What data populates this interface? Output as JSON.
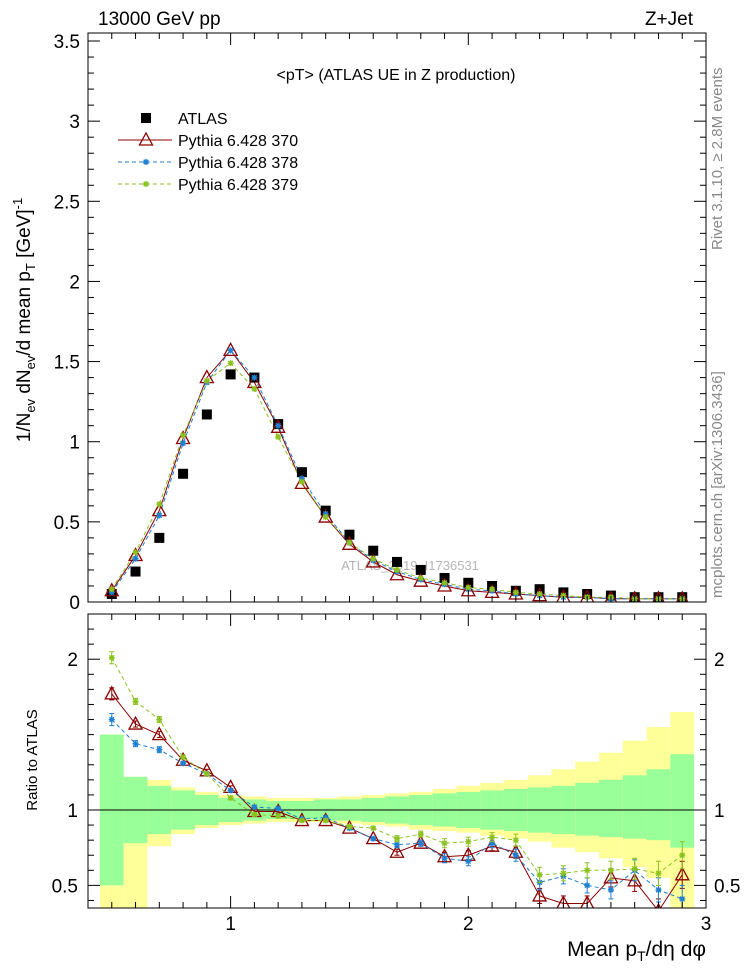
{
  "header": {
    "left": "13000 GeV pp",
    "right": "Z+Jet"
  },
  "side_labels": {
    "rivet": "Rivet 3.1.10, ≥ 2.8M events",
    "mcplots": "mcplots.cern.ch [arXiv:1306.3436]"
  },
  "watermark": "ATLAS_2019_I1736531",
  "colors": {
    "atlas": "#000000",
    "p370": "#8b0000",
    "p378": "#1f7fd0",
    "p379": "#8cc21f",
    "band_inner": "#99ff99",
    "band_outer": "#ffff99"
  },
  "chart_data": [
    {
      "type": "scatter",
      "title": "<pT> (ATLAS UE in Z production)",
      "xlabel": "Mean p_T/dη dφ",
      "ylabel": "1/N_ev dN_ev/d mean p_T [GeV]^-1",
      "xlim": [
        0.4,
        3.0
      ],
      "ylim": [
        0,
        3.55
      ],
      "yticks": [
        "0",
        "0.5",
        "1",
        "1.5",
        "2",
        "2.5",
        "3",
        "3.5"
      ],
      "legend_position": "top-left",
      "x": [
        0.5,
        0.6,
        0.7,
        0.8,
        0.9,
        1.0,
        1.1,
        1.2,
        1.3,
        1.4,
        1.5,
        1.6,
        1.7,
        1.8,
        1.9,
        2.0,
        2.1,
        2.2,
        2.3,
        2.4,
        2.5,
        2.6,
        2.7,
        2.8,
        2.9
      ],
      "series": [
        {
          "name": "ATLAS",
          "marker": "square",
          "values": [
            0.05,
            0.19,
            0.4,
            0.8,
            1.17,
            1.42,
            1.4,
            1.11,
            0.81,
            0.57,
            0.42,
            0.32,
            0.25,
            0.2,
            0.15,
            0.12,
            0.1,
            0.07,
            0.08,
            0.06,
            0.05,
            0.04,
            0.03,
            0.03,
            0.03
          ]
        },
        {
          "name": "Pythia 6.428 370",
          "marker": "triangle",
          "values": [
            0.07,
            0.29,
            0.57,
            1.02,
            1.4,
            1.57,
            1.37,
            1.09,
            0.74,
            0.53,
            0.36,
            0.25,
            0.17,
            0.13,
            0.1,
            0.07,
            0.06,
            0.05,
            0.04,
            0.03,
            0.03,
            0.02,
            0.02,
            0.02,
            0.02
          ]
        },
        {
          "name": "Pythia 6.428 378",
          "marker": "star",
          "values": [
            0.06,
            0.27,
            0.54,
            0.99,
            1.37,
            1.57,
            1.4,
            1.1,
            0.77,
            0.55,
            0.37,
            0.26,
            0.19,
            0.14,
            0.11,
            0.08,
            0.07,
            0.05,
            0.04,
            0.03,
            0.03,
            0.02,
            0.02,
            0.02,
            0.02
          ]
        },
        {
          "name": "Pythia 6.428 379",
          "marker": "star",
          "values": [
            0.08,
            0.31,
            0.61,
            1.04,
            1.38,
            1.49,
            1.33,
            1.03,
            0.75,
            0.53,
            0.37,
            0.27,
            0.2,
            0.15,
            0.12,
            0.09,
            0.08,
            0.06,
            0.05,
            0.04,
            0.03,
            0.03,
            0.02,
            0.02,
            0.02
          ]
        }
      ]
    },
    {
      "type": "line",
      "ylabel": "Ratio to ATLAS",
      "xlabel": "Mean p_T/dη dφ",
      "xlim": [
        0.4,
        3.0
      ],
      "ylim": [
        0.35,
        2.3
      ],
      "xticks": [
        "1",
        "2",
        "3"
      ],
      "yticks": [
        "0.5",
        "1",
        "2"
      ],
      "reference_line": 1,
      "bin_edges": [
        0.45,
        0.55,
        0.65,
        0.75,
        0.85,
        0.95,
        1.05,
        1.15,
        1.25,
        1.35,
        1.45,
        1.55,
        1.65,
        1.75,
        1.85,
        1.95,
        2.05,
        2.15,
        2.25,
        2.35,
        2.45,
        2.55,
        2.65,
        2.75,
        2.85,
        2.95
      ],
      "band_inner": {
        "low": [
          0.5,
          0.78,
          0.84,
          0.87,
          0.9,
          0.92,
          0.93,
          0.94,
          0.94,
          0.93,
          0.93,
          0.92,
          0.91,
          0.9,
          0.89,
          0.88,
          0.87,
          0.86,
          0.85,
          0.84,
          0.83,
          0.82,
          0.81,
          0.8,
          0.75
        ],
        "high": [
          1.5,
          1.22,
          1.16,
          1.13,
          1.1,
          1.08,
          1.07,
          1.06,
          1.06,
          1.07,
          1.07,
          1.08,
          1.09,
          1.1,
          1.11,
          1.12,
          1.13,
          1.14,
          1.15,
          1.16,
          1.18,
          1.2,
          1.23,
          1.27,
          1.37
        ]
      },
      "band_outer": {
        "low": [
          0.35,
          0.35,
          0.76,
          0.84,
          0.88,
          0.9,
          0.91,
          0.92,
          0.92,
          0.92,
          0.91,
          0.9,
          0.89,
          0.87,
          0.86,
          0.85,
          0.83,
          0.81,
          0.79,
          0.75,
          0.72,
          0.68,
          0.62,
          0.55,
          0.35
        ],
        "high": [
          1.5,
          1.22,
          1.2,
          1.15,
          1.12,
          1.1,
          1.09,
          1.08,
          1.08,
          1.08,
          1.09,
          1.1,
          1.11,
          1.12,
          1.14,
          1.16,
          1.18,
          1.2,
          1.23,
          1.27,
          1.32,
          1.38,
          1.46,
          1.55,
          1.65
        ]
      },
      "x": [
        0.5,
        0.6,
        0.7,
        0.8,
        0.9,
        1.0,
        1.1,
        1.2,
        1.3,
        1.4,
        1.5,
        1.6,
        1.7,
        1.8,
        1.9,
        2.0,
        2.1,
        2.2,
        2.3,
        2.4,
        2.5,
        2.6,
        2.7,
        2.8,
        2.9
      ],
      "series": [
        {
          "name": "Pythia 6.428 370",
          "marker": "triangle",
          "values": [
            1.77,
            1.57,
            1.5,
            1.33,
            1.26,
            1.15,
            0.99,
            0.99,
            0.93,
            0.93,
            0.88,
            0.81,
            0.72,
            0.78,
            0.69,
            0.7,
            0.76,
            0.72,
            0.43,
            0.38,
            0.38,
            0.55,
            0.53,
            0.33,
            0.57
          ],
          "err": [
            0.04,
            0.02,
            0.02,
            0.01,
            0.01,
            0.01,
            0.01,
            0.01,
            0.01,
            0.01,
            0.01,
            0.01,
            0.02,
            0.02,
            0.03,
            0.03,
            0.03,
            0.04,
            0.05,
            0.05,
            0.05,
            0.06,
            0.07,
            0.08,
            0.09
          ]
        },
        {
          "name": "Pythia 6.428 378",
          "marker": "star",
          "values": [
            1.6,
            1.44,
            1.4,
            1.31,
            1.24,
            1.13,
            1.02,
            1.01,
            0.94,
            0.95,
            0.88,
            0.81,
            0.77,
            0.78,
            0.68,
            0.66,
            0.78,
            0.7,
            0.52,
            0.56,
            0.5,
            0.47,
            0.6,
            0.47,
            0.41
          ],
          "err": [
            0.04,
            0.02,
            0.02,
            0.01,
            0.01,
            0.01,
            0.01,
            0.01,
            0.01,
            0.01,
            0.01,
            0.01,
            0.02,
            0.02,
            0.03,
            0.03,
            0.03,
            0.04,
            0.05,
            0.05,
            0.05,
            0.06,
            0.07,
            0.08,
            0.09
          ]
        },
        {
          "name": "Pythia 6.428 379",
          "marker": "star",
          "values": [
            2.01,
            1.72,
            1.6,
            1.35,
            1.24,
            1.08,
            0.97,
            0.96,
            0.93,
            0.93,
            0.89,
            0.88,
            0.81,
            0.84,
            0.78,
            0.79,
            0.82,
            0.8,
            0.57,
            0.58,
            0.6,
            0.6,
            0.61,
            0.58,
            0.7
          ],
          "err": [
            0.04,
            0.02,
            0.02,
            0.01,
            0.01,
            0.01,
            0.01,
            0.01,
            0.01,
            0.01,
            0.01,
            0.01,
            0.02,
            0.02,
            0.03,
            0.03,
            0.03,
            0.04,
            0.05,
            0.05,
            0.05,
            0.06,
            0.07,
            0.08,
            0.09
          ]
        }
      ]
    }
  ]
}
